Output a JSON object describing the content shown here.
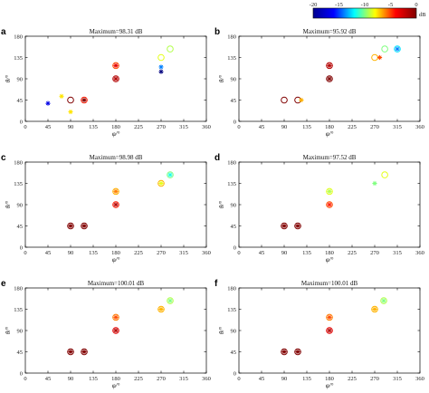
{
  "colorbar": {
    "ticks": [
      "-20",
      "-15",
      "-10",
      "-5",
      "0"
    ],
    "unit": "dB",
    "range": [
      -20,
      0
    ],
    "colors": [
      "#00008f",
      "#0000ff",
      "#00ffff",
      "#ffff00",
      "#ff0000",
      "#800000"
    ]
  },
  "chart_data": [
    {
      "type": "scatter",
      "panel": "a",
      "title": "Maximum=98.31 dB",
      "xlabel": "φ/°",
      "ylabel": "θ/°",
      "xlim": [
        0,
        360
      ],
      "ylim": [
        0,
        180
      ],
      "xticks": [
        0,
        45,
        90,
        135,
        180,
        225,
        270,
        315,
        360
      ],
      "yticks": [
        0,
        45,
        90,
        135,
        180
      ],
      "points": [
        {
          "x": 45,
          "y": 38,
          "db": -18,
          "marker": "star"
        },
        {
          "x": 72,
          "y": 53,
          "db": -7,
          "marker": "star"
        },
        {
          "x": 90,
          "y": 20,
          "db": -7,
          "marker": "star"
        },
        {
          "x": 90,
          "y": 45,
          "db": 0,
          "marker": "circle"
        },
        {
          "x": 117,
          "y": 45,
          "db": -3,
          "marker": "circle"
        },
        {
          "x": 117,
          "y": 45,
          "db": 0,
          "marker": "star"
        },
        {
          "x": 180,
          "y": 90,
          "db": -1,
          "marker": "circle"
        },
        {
          "x": 180,
          "y": 90,
          "db": -1,
          "marker": "star"
        },
        {
          "x": 180,
          "y": 118,
          "db": -4,
          "marker": "circle"
        },
        {
          "x": 180,
          "y": 118,
          "db": -2,
          "marker": "star"
        },
        {
          "x": 270,
          "y": 105,
          "db": -20,
          "marker": "star"
        },
        {
          "x": 270,
          "y": 115,
          "db": -15,
          "marker": "star"
        },
        {
          "x": 270,
          "y": 135,
          "db": -8,
          "marker": "circle"
        },
        {
          "x": 288,
          "y": 153,
          "db": -9,
          "marker": "circle"
        }
      ]
    },
    {
      "type": "scatter",
      "panel": "b",
      "title": "Maximum=95.92 dB",
      "xlabel": "φ/°",
      "ylabel": "θ/°",
      "xlim": [
        0,
        360
      ],
      "ylim": [
        0,
        180
      ],
      "xticks": [
        0,
        45,
        90,
        135,
        180,
        225,
        270,
        315,
        360
      ],
      "yticks": [
        0,
        45,
        90,
        135,
        180
      ],
      "points": [
        {
          "x": 90,
          "y": 45,
          "db": 0,
          "marker": "circle"
        },
        {
          "x": 117,
          "y": 45,
          "db": 0,
          "marker": "circle"
        },
        {
          "x": 124,
          "y": 45,
          "db": -6,
          "marker": "star"
        },
        {
          "x": 180,
          "y": 90,
          "db": 0,
          "marker": "circle"
        },
        {
          "x": 180,
          "y": 90,
          "db": 0,
          "marker": "star"
        },
        {
          "x": 180,
          "y": 118,
          "db": -1,
          "marker": "circle"
        },
        {
          "x": 180,
          "y": 118,
          "db": -1,
          "marker": "star"
        },
        {
          "x": 270,
          "y": 135,
          "db": -6,
          "marker": "circle"
        },
        {
          "x": 280,
          "y": 135,
          "db": -4,
          "marker": "star"
        },
        {
          "x": 290,
          "y": 153,
          "db": -10,
          "marker": "circle"
        },
        {
          "x": 315,
          "y": 153,
          "db": -13,
          "marker": "circle"
        },
        {
          "x": 315,
          "y": 153,
          "db": -15,
          "marker": "star"
        }
      ]
    },
    {
      "type": "scatter",
      "panel": "c",
      "title": "Maximum=98.98 dB",
      "xlabel": "φ/°",
      "ylabel": "θ/°",
      "xlim": [
        0,
        360
      ],
      "ylim": [
        0,
        180
      ],
      "xticks": [
        0,
        45,
        90,
        135,
        180,
        225,
        270,
        315,
        360
      ],
      "yticks": [
        0,
        45,
        90,
        135,
        180
      ],
      "points": [
        {
          "x": 90,
          "y": 45,
          "db": 0,
          "marker": "circle"
        },
        {
          "x": 90,
          "y": 45,
          "db": 0,
          "marker": "star"
        },
        {
          "x": 117,
          "y": 45,
          "db": 0,
          "marker": "circle"
        },
        {
          "x": 117,
          "y": 45,
          "db": 0,
          "marker": "star"
        },
        {
          "x": 180,
          "y": 90,
          "db": -3,
          "marker": "circle"
        },
        {
          "x": 180,
          "y": 90,
          "db": -1,
          "marker": "star"
        },
        {
          "x": 180,
          "y": 118,
          "db": -6,
          "marker": "circle"
        },
        {
          "x": 180,
          "y": 118,
          "db": -5,
          "marker": "star"
        },
        {
          "x": 270,
          "y": 135,
          "db": -6,
          "marker": "circle"
        },
        {
          "x": 270,
          "y": 135,
          "db": -8,
          "marker": "star"
        },
        {
          "x": 288,
          "y": 153,
          "db": -10,
          "marker": "circle"
        },
        {
          "x": 288,
          "y": 153,
          "db": -12,
          "marker": "star"
        }
      ]
    },
    {
      "type": "scatter",
      "panel": "d",
      "title": "Maximum=97.52 dB",
      "xlabel": "φ/°",
      "ylabel": "θ/°",
      "xlim": [
        0,
        360
      ],
      "ylim": [
        0,
        180
      ],
      "xticks": [
        0,
        45,
        90,
        135,
        180,
        225,
        270,
        315,
        360
      ],
      "yticks": [
        0,
        45,
        90,
        135,
        180
      ],
      "points": [
        {
          "x": 90,
          "y": 45,
          "db": 0,
          "marker": "circle"
        },
        {
          "x": 90,
          "y": 45,
          "db": 0,
          "marker": "star"
        },
        {
          "x": 117,
          "y": 45,
          "db": 0,
          "marker": "circle"
        },
        {
          "x": 117,
          "y": 45,
          "db": 0,
          "marker": "star"
        },
        {
          "x": 180,
          "y": 90,
          "db": -4,
          "marker": "circle"
        },
        {
          "x": 180,
          "y": 90,
          "db": -3,
          "marker": "star"
        },
        {
          "x": 180,
          "y": 118,
          "db": -8,
          "marker": "circle"
        },
        {
          "x": 180,
          "y": 118,
          "db": -9,
          "marker": "star"
        },
        {
          "x": 270,
          "y": 135,
          "db": -10,
          "marker": "star"
        },
        {
          "x": 290,
          "y": 153,
          "db": -8,
          "marker": "circle"
        }
      ]
    },
    {
      "type": "scatter",
      "panel": "e",
      "title": "Maximum=100.01 dB",
      "xlabel": "φ/°",
      "ylabel": "θ/°",
      "xlim": [
        0,
        360
      ],
      "ylim": [
        0,
        180
      ],
      "xticks": [
        0,
        45,
        90,
        135,
        180,
        225,
        270,
        315,
        360
      ],
      "yticks": [
        0,
        45,
        90,
        135,
        180
      ],
      "points": [
        {
          "x": 90,
          "y": 45,
          "db": 0,
          "marker": "circle"
        },
        {
          "x": 90,
          "y": 45,
          "db": 0,
          "marker": "star"
        },
        {
          "x": 117,
          "y": 45,
          "db": 0,
          "marker": "circle"
        },
        {
          "x": 117,
          "y": 45,
          "db": 0,
          "marker": "star"
        },
        {
          "x": 180,
          "y": 90,
          "db": -2,
          "marker": "circle"
        },
        {
          "x": 180,
          "y": 90,
          "db": -1,
          "marker": "star"
        },
        {
          "x": 180,
          "y": 118,
          "db": -5,
          "marker": "circle"
        },
        {
          "x": 180,
          "y": 118,
          "db": -4,
          "marker": "star"
        },
        {
          "x": 270,
          "y": 135,
          "db": -6,
          "marker": "circle"
        },
        {
          "x": 270,
          "y": 135,
          "db": -6,
          "marker": "star"
        },
        {
          "x": 288,
          "y": 153,
          "db": -9,
          "marker": "circle"
        },
        {
          "x": 288,
          "y": 153,
          "db": -10,
          "marker": "star"
        }
      ]
    },
    {
      "type": "scatter",
      "panel": "f",
      "title": "Maximum=100.01 dB",
      "xlabel": "φ/°",
      "ylabel": "θ/°",
      "xlim": [
        0,
        360
      ],
      "ylim": [
        0,
        180
      ],
      "xticks": [
        0,
        45,
        90,
        135,
        180,
        225,
        270,
        315,
        360
      ],
      "yticks": [
        0,
        45,
        90,
        135,
        180
      ],
      "points": [
        {
          "x": 90,
          "y": 45,
          "db": 0,
          "marker": "circle"
        },
        {
          "x": 90,
          "y": 45,
          "db": 0,
          "marker": "star"
        },
        {
          "x": 117,
          "y": 45,
          "db": 0,
          "marker": "circle"
        },
        {
          "x": 117,
          "y": 45,
          "db": 0,
          "marker": "star"
        },
        {
          "x": 180,
          "y": 90,
          "db": -2,
          "marker": "circle"
        },
        {
          "x": 180,
          "y": 90,
          "db": -1,
          "marker": "star"
        },
        {
          "x": 180,
          "y": 118,
          "db": -5,
          "marker": "circle"
        },
        {
          "x": 180,
          "y": 118,
          "db": -4,
          "marker": "star"
        },
        {
          "x": 270,
          "y": 135,
          "db": -6,
          "marker": "circle"
        },
        {
          "x": 270,
          "y": 135,
          "db": -6,
          "marker": "star"
        },
        {
          "x": 288,
          "y": 153,
          "db": -9,
          "marker": "circle"
        },
        {
          "x": 288,
          "y": 153,
          "db": -10,
          "marker": "star"
        }
      ]
    }
  ]
}
